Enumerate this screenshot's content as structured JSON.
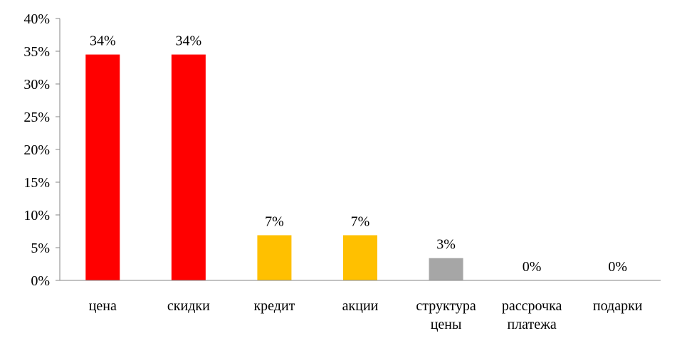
{
  "chart_data": {
    "type": "bar",
    "categories": [
      [
        "цена"
      ],
      [
        "скидки"
      ],
      [
        "кредит"
      ],
      [
        "акции"
      ],
      [
        "структура",
        "цены"
      ],
      [
        "рассрочка",
        "платежа"
      ],
      [
        "подарки"
      ]
    ],
    "values": [
      34.5,
      34.5,
      6.9,
      6.9,
      3.4,
      0,
      0
    ],
    "data_labels": [
      "34%",
      "34%",
      "7%",
      "7%",
      "3%",
      "0%",
      "0%"
    ],
    "bar_colors": [
      "#ff0000",
      "#ff0000",
      "#ffc000",
      "#ffc000",
      "#a6a6a6",
      "#ffffff",
      "#ffffff"
    ],
    "ylim": [
      0,
      40
    ],
    "y_ticks": [
      0,
      5,
      10,
      15,
      20,
      25,
      30,
      35,
      40
    ],
    "y_tick_labels": [
      "0%",
      "5%",
      "10%",
      "15%",
      "20%",
      "25%",
      "30%",
      "35%",
      "40%"
    ],
    "title": "",
    "xlabel": "",
    "ylabel": "",
    "grid": false,
    "legend": "none",
    "axis_color": "#868686"
  }
}
